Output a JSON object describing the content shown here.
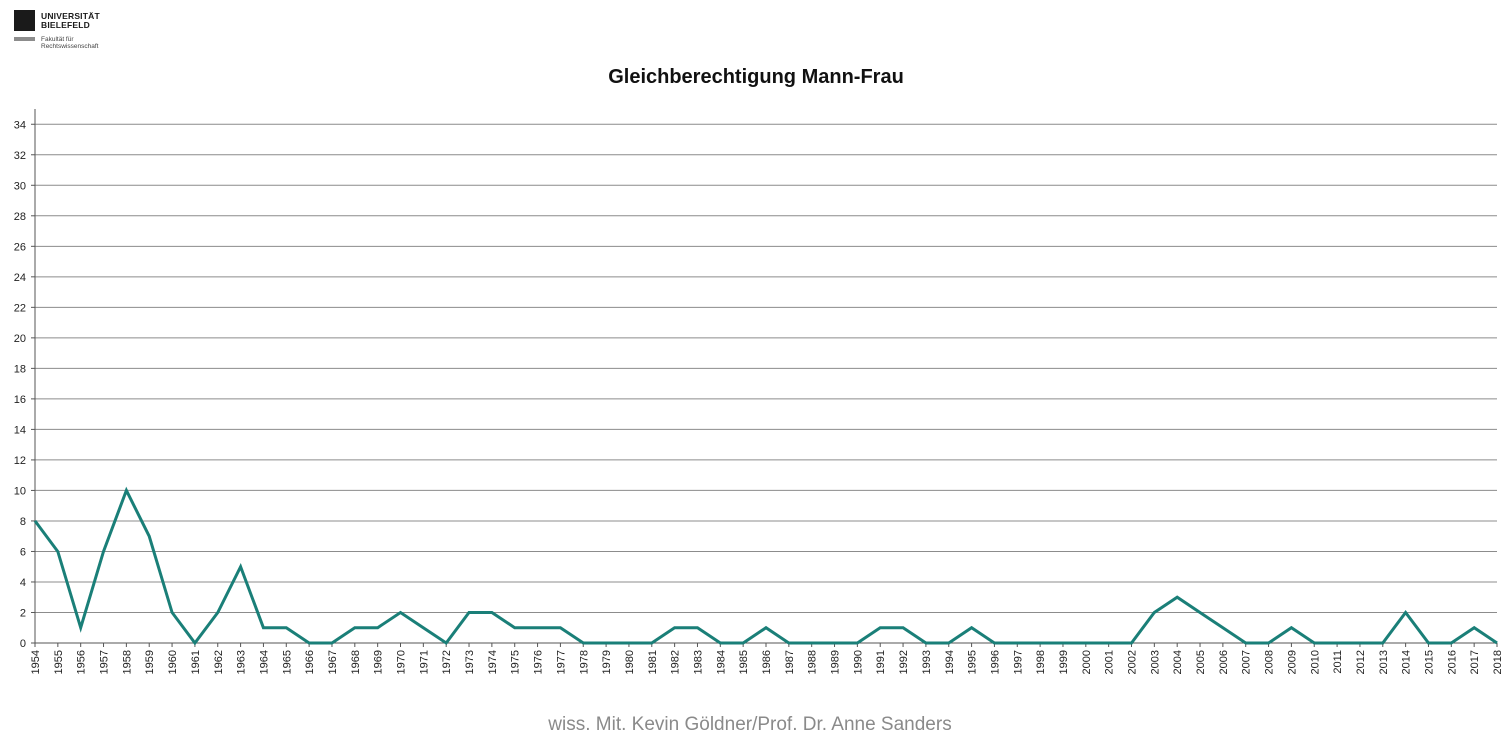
{
  "logo": {
    "line1": "UNIVERSITÄT",
    "line2": "BIELEFELD",
    "faculty_line1": "Fakultät für",
    "faculty_line2": "Rechtswissenschaft"
  },
  "footer": "wiss. Mit. Kevin Göldner/Prof.  Dr. Anne Sanders",
  "colors": {
    "line": "#1a7f78",
    "grid": "#8c8c8c",
    "axis": "#555555"
  },
  "chart_data": {
    "type": "line",
    "title": "Gleichberechtigung Mann-Frau",
    "xlabel": "",
    "ylabel": "",
    "ylim": [
      0,
      35
    ],
    "yticks": [
      0,
      2,
      4,
      6,
      8,
      10,
      12,
      14,
      16,
      18,
      20,
      22,
      24,
      26,
      28,
      30,
      32,
      34
    ],
    "grid": true,
    "categories": [
      "1954",
      "1955",
      "1956",
      "1957",
      "1958",
      "1959",
      "1960",
      "1961",
      "1962",
      "1963",
      "1964",
      "1965",
      "1966",
      "1967",
      "1968",
      "1969",
      "1970",
      "1971",
      "1972",
      "1973",
      "1974",
      "1975",
      "1976",
      "1977",
      "1978",
      "1979",
      "1980",
      "1981",
      "1982",
      "1983",
      "1984",
      "1985",
      "1986",
      "1987",
      "1988",
      "1989",
      "1990",
      "1991",
      "1992",
      "1993",
      "1994",
      "1995",
      "1996",
      "1997",
      "1998",
      "1999",
      "2000",
      "2001",
      "2002",
      "2003",
      "2004",
      "2005",
      "2006",
      "2007",
      "2008",
      "2009",
      "2010",
      "2011",
      "2012",
      "2013",
      "2014",
      "2015",
      "2016",
      "2017",
      "2018"
    ],
    "values": [
      8,
      6,
      1,
      6,
      10,
      7,
      2,
      0,
      2,
      5,
      1,
      1,
      0,
      0,
      1,
      1,
      2,
      1,
      0,
      2,
      2,
      1,
      1,
      1,
      0,
      0,
      0,
      0,
      1,
      1,
      0,
      0,
      1,
      0,
      0,
      0,
      0,
      1,
      1,
      0,
      0,
      1,
      0,
      0,
      0,
      0,
      0,
      0,
      0,
      2,
      3,
      2,
      1,
      0,
      0,
      1,
      0,
      0,
      0,
      0,
      2,
      0,
      0,
      1,
      0
    ]
  }
}
